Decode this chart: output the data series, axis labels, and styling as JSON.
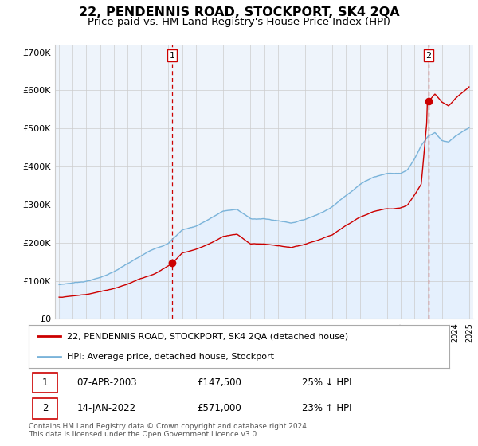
{
  "title": "22, PENDENNIS ROAD, STOCKPORT, SK4 2QA",
  "subtitle": "Price paid vs. HM Land Registry's House Price Index (HPI)",
  "title_fontsize": 11.5,
  "subtitle_fontsize": 9.5,
  "ylim": [
    0,
    720000
  ],
  "yticks": [
    0,
    100000,
    200000,
    300000,
    400000,
    500000,
    600000,
    700000
  ],
  "ytick_labels": [
    "£0",
    "£100K",
    "£200K",
    "£300K",
    "£400K",
    "£500K",
    "£600K",
    "£700K"
  ],
  "xlim_start": 1994.7,
  "xlim_end": 2025.3,
  "sale1_x": 2003.27,
  "sale1_y": 147500,
  "sale2_x": 2022.04,
  "sale2_y": 571000,
  "red_line_color": "#cc0000",
  "blue_line_color": "#7ab3d9",
  "blue_fill_color": "#ddeeff",
  "marker_color": "#cc0000",
  "vline_color": "#cc0000",
  "grid_color": "#cccccc",
  "background_color": "#ffffff",
  "plot_bg_color": "#eef4fb",
  "legend_label_red": "22, PENDENNIS ROAD, STOCKPORT, SK4 2QA (detached house)",
  "legend_label_blue": "HPI: Average price, detached house, Stockport",
  "table_row1": [
    "1",
    "07-APR-2003",
    "£147,500",
    "25% ↓ HPI"
  ],
  "table_row2": [
    "2",
    "14-JAN-2022",
    "£571,000",
    "23% ↑ HPI"
  ],
  "footnote": "Contains HM Land Registry data © Crown copyright and database right 2024.\nThis data is licensed under the Open Government Licence v3.0.",
  "hpi_nodes_x": [
    1995,
    1996,
    1997,
    1998,
    1999,
    2000,
    2001,
    2002,
    2003,
    2004,
    2005,
    2006,
    2007,
    2008,
    2009,
    2010,
    2011,
    2012,
    2013,
    2014,
    2015,
    2016,
    2017,
    2018,
    2019,
    2020,
    2020.5,
    2021,
    2021.5,
    2022,
    2022.5,
    2023,
    2023.5,
    2024,
    2024.5,
    2025
  ],
  "hpi_nodes_y": [
    90000,
    95000,
    100000,
    110000,
    125000,
    145000,
    165000,
    185000,
    200000,
    235000,
    245000,
    265000,
    285000,
    290000,
    265000,
    265000,
    260000,
    255000,
    265000,
    280000,
    300000,
    330000,
    360000,
    380000,
    390000,
    390000,
    400000,
    430000,
    465000,
    490000,
    500000,
    480000,
    475000,
    490000,
    500000,
    510000
  ],
  "red_nodes_x": [
    1995,
    1996,
    1997,
    1998,
    1999,
    2000,
    2001,
    2002,
    2003.27,
    2004,
    2005,
    2006,
    2007,
    2008,
    2009,
    2010,
    2011,
    2012,
    2013,
    2014,
    2015,
    2016,
    2017,
    2018,
    2019,
    2020,
    2020.5,
    2021,
    2021.5,
    2022.04,
    2022.5,
    2023,
    2023.5,
    2024,
    2024.5,
    2025
  ],
  "red_nodes_y": [
    57000,
    60000,
    64000,
    71000,
    80000,
    93000,
    107000,
    120000,
    147500,
    175000,
    185000,
    200000,
    220000,
    225000,
    200000,
    200000,
    195000,
    190000,
    197000,
    208000,
    220000,
    245000,
    265000,
    282000,
    290000,
    292000,
    300000,
    325000,
    355000,
    571000,
    590000,
    570000,
    560000,
    580000,
    595000,
    610000
  ]
}
